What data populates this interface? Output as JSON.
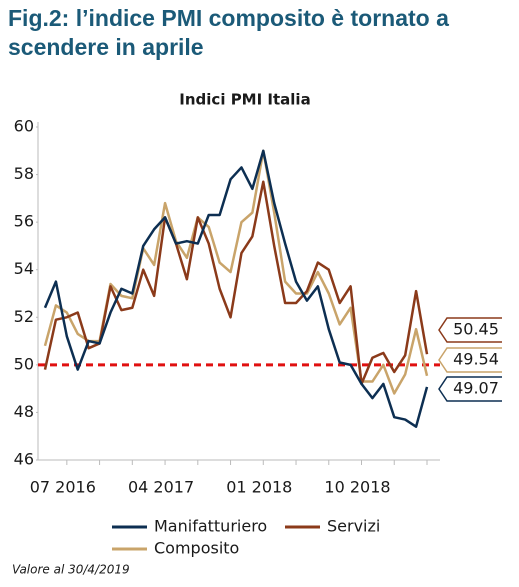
{
  "chart_data": {
    "type": "line",
    "title": "Fig.2:  l’indice PMI composito è tornato a scendere in aprile",
    "subtitle": "Indici PMI Italia",
    "note": "Valore al 30/4/2019",
    "categories": [
      null,
      null,
      "07 2016",
      null,
      null,
      null,
      null,
      null,
      null,
      null,
      null,
      "04 2017",
      null,
      null,
      null,
      null,
      null,
      null,
      null,
      null,
      "01 2018",
      null,
      null,
      null,
      null,
      null,
      null,
      null,
      null,
      "10 2018",
      null,
      null,
      null,
      null,
      null,
      null
    ],
    "series": [
      {
        "name": "Manifatturiero",
        "color": "#0d2f52",
        "values": [
          52.4,
          53.5,
          51.2,
          49.8,
          51.0,
          50.9,
          52.2,
          53.2,
          53.0,
          55.0,
          55.7,
          56.2,
          55.1,
          55.2,
          55.1,
          56.3,
          56.3,
          57.8,
          58.3,
          57.4,
          59.0,
          56.8,
          55.1,
          53.5,
          52.7,
          53.3,
          51.5,
          50.1,
          50.0,
          49.2,
          48.6,
          49.2,
          47.8,
          47.7,
          47.4,
          49.07
        ]
      },
      {
        "name": "Servizi",
        "color": "#8b3a1a",
        "values": [
          49.8,
          51.9,
          52.0,
          52.2,
          50.7,
          50.9,
          53.3,
          52.3,
          52.4,
          54.0,
          52.9,
          56.2,
          55.1,
          53.6,
          56.2,
          55.1,
          53.2,
          52.0,
          54.7,
          55.4,
          57.7,
          55.0,
          52.6,
          52.6,
          53.1,
          54.3,
          54.0,
          52.6,
          53.3,
          49.2,
          50.3,
          50.5,
          49.7,
          50.4,
          53.1,
          50.45
        ]
      },
      {
        "name": "Composito",
        "color": "#c9a46a",
        "values": [
          50.8,
          52.5,
          52.2,
          51.3,
          51.0,
          51.0,
          53.4,
          52.9,
          52.8,
          54.9,
          54.2,
          56.8,
          55.2,
          54.5,
          56.2,
          55.8,
          54.3,
          53.9,
          56.0,
          56.4,
          59.0,
          56.4,
          53.5,
          53.0,
          53.0,
          53.9,
          53.0,
          51.7,
          52.4,
          49.3,
          49.3,
          50.0,
          48.8,
          49.6,
          51.5,
          49.54
        ]
      }
    ],
    "reference_line": {
      "value": 50,
      "color": "#e01010"
    },
    "ylim": [
      46,
      60
    ],
    "yticks": [
      46,
      48,
      50,
      52,
      54,
      56,
      58,
      60
    ]
  }
}
